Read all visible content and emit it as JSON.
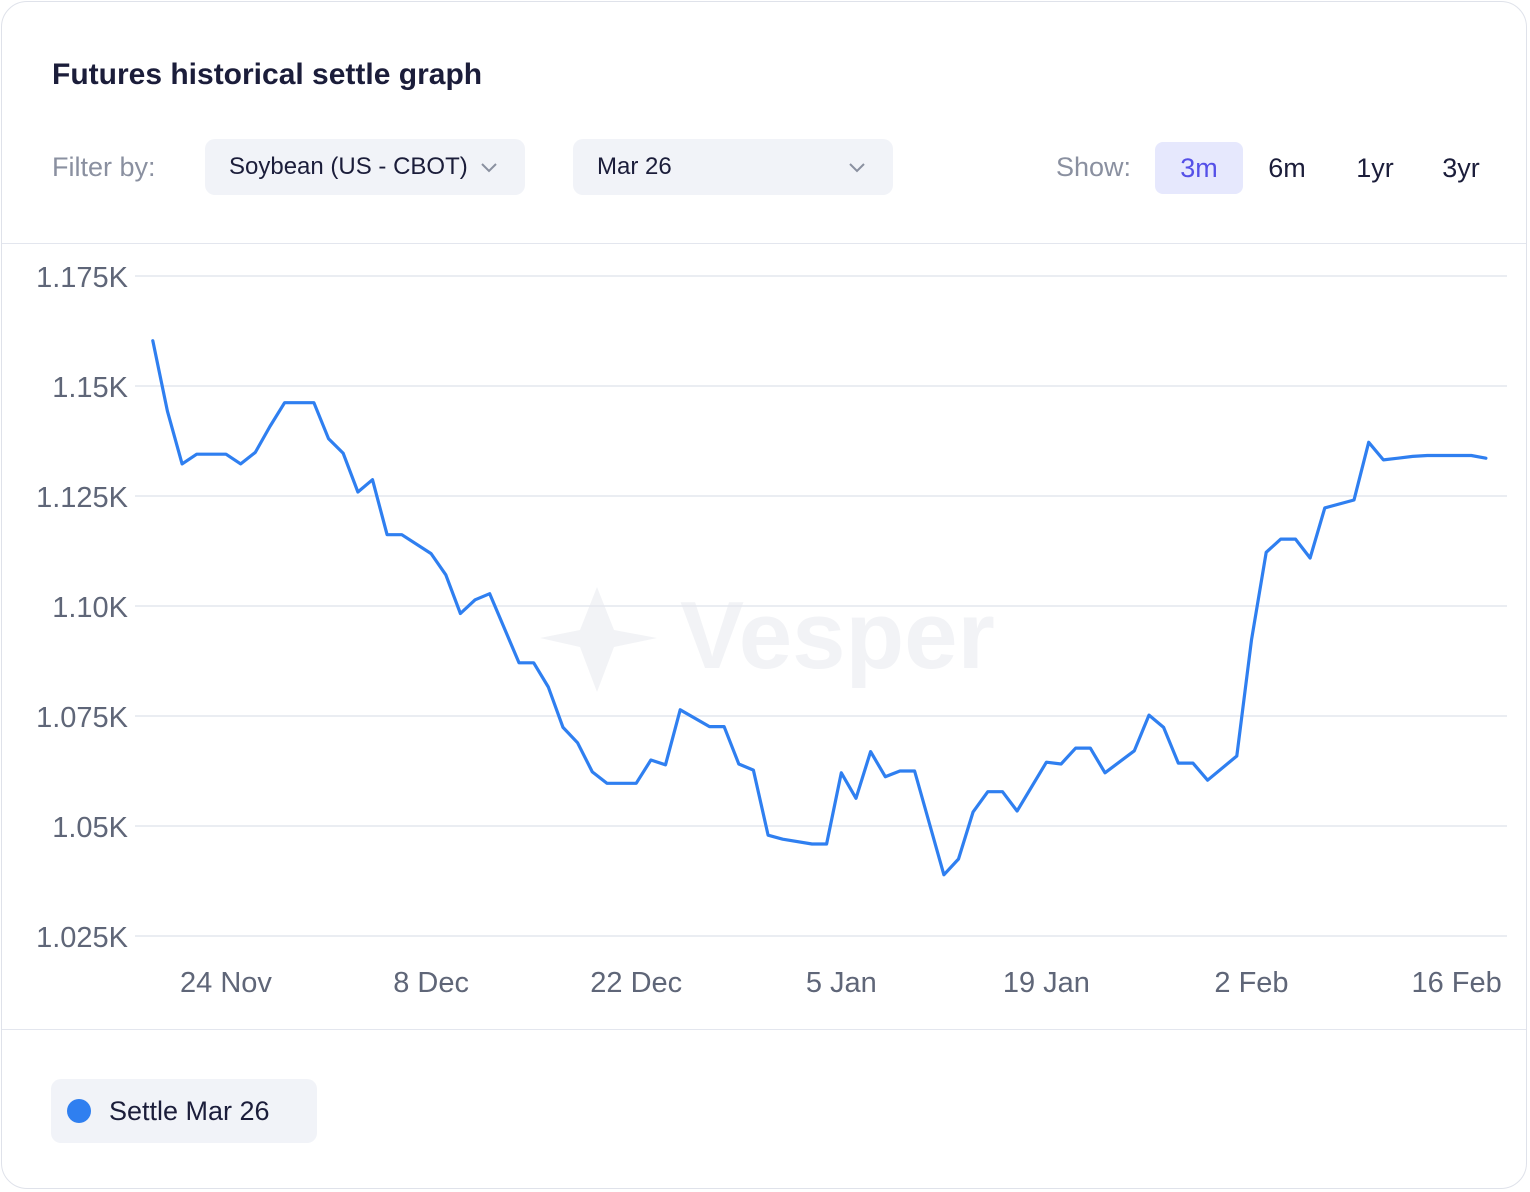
{
  "header": {
    "title": "Futures historical settle graph",
    "filter_label": "Filter by:",
    "commodity_select": "Soybean (US - CBOT)",
    "contract_select": "Mar 26",
    "show_label": "Show:",
    "ranges": [
      "3m",
      "6m",
      "1yr",
      "3yr"
    ],
    "active_range": "3m"
  },
  "watermark": "Vesper",
  "legend": {
    "label": "Settle Mar 26",
    "color": "#2f7ff0"
  },
  "chart_data": {
    "type": "line",
    "title": "Futures historical settle graph",
    "xlabel": "",
    "ylabel": "",
    "ylim": [
      1025,
      1175
    ],
    "y_ticks": [
      1025,
      1050,
      1075,
      1100,
      1125,
      1150,
      1175
    ],
    "y_tick_labels": [
      "1.025K",
      "1.05K",
      "1.075K",
      "1.10K",
      "1.125K",
      "1.15K",
      "1.175K"
    ],
    "x_tick_labels": [
      "24 Nov",
      "8 Dec",
      "22 Dec",
      "5 Jan",
      "19 Jan",
      "2 Feb",
      "16 Feb"
    ],
    "x_tick_dates": [
      "2025-11-24",
      "2025-12-08",
      "2025-12-22",
      "2026-01-05",
      "2026-01-19",
      "2026-02-02",
      "2026-02-16"
    ],
    "grid": true,
    "series": [
      {
        "name": "Settle Mar 26",
        "color": "#2f7ff0",
        "x": [
          "2025-11-19",
          "2025-11-20",
          "2025-11-21",
          "2025-11-22",
          "2025-11-24",
          "2025-11-25",
          "2025-11-26",
          "2025-11-27",
          "2025-11-28",
          "2025-11-30",
          "2025-12-01",
          "2025-12-02",
          "2025-12-03",
          "2025-12-04",
          "2025-12-05",
          "2025-12-06",
          "2025-12-08",
          "2025-12-09",
          "2025-12-10",
          "2025-12-11",
          "2025-12-12",
          "2025-12-14",
          "2025-12-15",
          "2025-12-16",
          "2025-12-17",
          "2025-12-18",
          "2025-12-19",
          "2025-12-20",
          "2025-12-22",
          "2025-12-23",
          "2025-12-24",
          "2025-12-25",
          "2025-12-27",
          "2025-12-28",
          "2025-12-29",
          "2025-12-30",
          "2025-12-31",
          "2026-01-01",
          "2026-01-03",
          "2026-01-04",
          "2026-01-05",
          "2026-01-06",
          "2026-01-07",
          "2026-01-08",
          "2026-01-09",
          "2026-01-10",
          "2026-01-12",
          "2026-01-13",
          "2026-01-14",
          "2026-01-15",
          "2026-01-16",
          "2026-01-17",
          "2026-01-19",
          "2026-01-20",
          "2026-01-21",
          "2026-01-22",
          "2026-01-23",
          "2026-01-25",
          "2026-01-26",
          "2026-01-27",
          "2026-01-28",
          "2026-01-29",
          "2026-01-30",
          "2026-02-01",
          "2026-02-02",
          "2026-02-03",
          "2026-02-04",
          "2026-02-05",
          "2026-02-06",
          "2026-02-07",
          "2026-02-09",
          "2026-02-10",
          "2026-02-11",
          "2026-02-12",
          "2026-02-13",
          "2026-02-14",
          "2026-02-17",
          "2026-02-18"
        ],
        "values": [
          1160.3,
          1144.3,
          1132.3,
          1134.5,
          1134.5,
          1132.3,
          1134.9,
          1140.8,
          1146.2,
          1146.2,
          1138.0,
          1134.7,
          1125.9,
          1128.7,
          1116.2,
          1116.2,
          1111.9,
          1107.1,
          1098.3,
          1101.4,
          1102.8,
          1087.1,
          1087.1,
          1081.6,
          1072.4,
          1068.9,
          1062.3,
          1059.7,
          1059.7,
          1065.0,
          1063.9,
          1076.4,
          1072.6,
          1072.6,
          1064.1,
          1062.7,
          1047.9,
          1047.0,
          1045.9,
          1045.9,
          1062.1,
          1056.3,
          1066.9,
          1061.2,
          1062.5,
          1062.5,
          1038.9,
          1042.5,
          1053.2,
          1057.8,
          1057.8,
          1053.4,
          1064.5,
          1064.1,
          1067.7,
          1067.7,
          1062.1,
          1067.1,
          1075.2,
          1072.4,
          1064.3,
          1064.3,
          1060.4,
          1065.9,
          1092.3,
          1112.2,
          1115.2,
          1115.2,
          1110.9,
          1122.3,
          1124.1,
          1137.2,
          1133.2,
          1133.6,
          1134.0,
          1134.2,
          1134.2,
          1133.6
        ]
      }
    ]
  }
}
